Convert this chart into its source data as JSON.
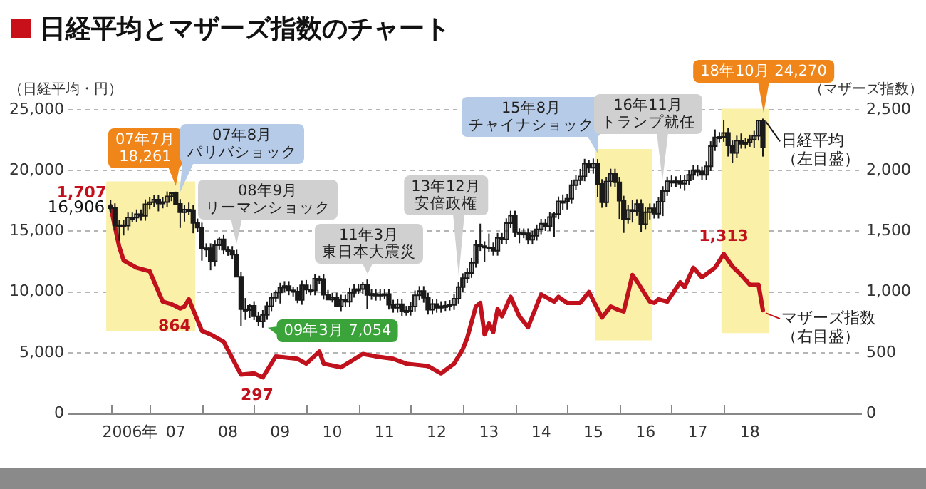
{
  "chart_data": {
    "type": "candlestick",
    "title": "日経平均とマザーズ指数のチャート",
    "ylabel": "（日経平均・円）",
    "y2label": "（マザーズ指数）",
    "xlim": [
      "2005-06-10",
      "2020-08-24"
    ],
    "xticks": [
      {
        "value": "2006-04",
        "label": null
      },
      {
        "value": "2006-08-15",
        "label": "2006年"
      },
      {
        "value": "2007-01",
        "label": null
      },
      {
        "value": "2007-07",
        "label": "07"
      },
      {
        "value": "2008-01",
        "label": null
      },
      {
        "value": "2008-07",
        "label": "08"
      },
      {
        "value": "2009-01",
        "label": null
      },
      {
        "value": "2009-07",
        "label": "09"
      },
      {
        "value": "2010-01",
        "label": null
      },
      {
        "value": "2010-07",
        "label": "10"
      },
      {
        "value": "2011-01",
        "label": null
      },
      {
        "value": "2011-07",
        "label": "11"
      },
      {
        "value": "2012-01",
        "label": null
      },
      {
        "value": "2012-07",
        "label": "12"
      },
      {
        "value": "2013-01",
        "label": null
      },
      {
        "value": "2013-07",
        "label": "13"
      },
      {
        "value": "2014-01",
        "label": null
      },
      {
        "value": "2014-07",
        "label": "14"
      },
      {
        "value": "2015-01",
        "label": null
      },
      {
        "value": "2015-07",
        "label": "15"
      },
      {
        "value": "2016-01",
        "label": null
      },
      {
        "value": "2016-07",
        "label": "16"
      },
      {
        "value": "2017-01",
        "label": null
      },
      {
        "value": "2017-07",
        "label": "17"
      },
      {
        "value": "2018-01",
        "label": null
      },
      {
        "value": "2018-07",
        "label": "18"
      }
    ],
    "ylim": [
      0,
      25000
    ],
    "yticks": [
      0,
      {
        "value": 5000,
        "label": "5,000"
      },
      {
        "value": 10000,
        "label": "10,000"
      },
      {
        "value": 15000,
        "label": "15,000"
      },
      {
        "value": 20000,
        "label": "20,000"
      },
      {
        "value": 25000,
        "label": "25,000"
      }
    ],
    "y2lim": [
      0,
      2500
    ],
    "y2ticks": [
      0,
      500,
      {
        "value": 1000,
        "label": "1,000"
      },
      {
        "value": 1500,
        "label": "1,500"
      },
      {
        "value": 2000,
        "label": "2,000"
      },
      {
        "value": 2500,
        "label": "2,500"
      }
    ],
    "grid": "y",
    "legend": "right",
    "bands": [
      {
        "axis": "x",
        "from": "2006-03-01",
        "to": "2007-11-15",
        "color": "#faf0a8"
      },
      {
        "axis": "x",
        "from": "2015-07-15",
        "to": "2016-08-15",
        "color": "#faf0a8"
      },
      {
        "axis": "x",
        "from": "2017-12-15",
        "to": "2018-11-15",
        "color": "#faf0a8"
      }
    ],
    "annotations": [
      {
        "text": "07年7月\n18,261",
        "x": "2007-07",
        "y": 18261
      },
      {
        "text": "07年8月パリバショック",
        "x": "2007-08",
        "y": 17648
      },
      {
        "text": "08年9月リーマンショック",
        "x": "2008-09",
        "y": 13472
      },
      {
        "text": "11年3月東日本大震災",
        "x": "2011-03",
        "y": 11024
      },
      {
        "text": "13年12月安倍政権",
        "x": "2012-12",
        "y": 10795
      },
      {
        "text": "15年8月チャイナショック",
        "x": "2015-08",
        "y": 20946
      },
      {
        "text": "16年11月トランプ就任",
        "x": "2016-11",
        "y": 18708
      },
      {
        "text": "18年10月 24,270",
        "x": "2018-10",
        "y": 24270
      },
      {
        "text": "09年3月 7,054",
        "x": "2009-03",
        "y": 7054
      },
      {
        "text": "16,906",
        "x": "2006-04",
        "y": 16906
      }
    ],
    "series": [
      {
        "name": "日経平均（左目盛）",
        "color": "#1a1a1a",
        "x": [
          "2006-04",
          "2006-05",
          "2006-06",
          "2006-07",
          "2006-08",
          "2006-09",
          "2006-10",
          "2006-11",
          "2006-12",
          "2007-01",
          "2007-02",
          "2007-03",
          "2007-04",
          "2007-05",
          "2007-06",
          "2007-07",
          "2007-08",
          "2007-09",
          "2007-10",
          "2007-11",
          "2007-12",
          "2008-01",
          "2008-02",
          "2008-03",
          "2008-04",
          "2008-05",
          "2008-06",
          "2008-07",
          "2008-08",
          "2008-09",
          "2008-10",
          "2008-11",
          "2008-12",
          "2009-01",
          "2009-02",
          "2009-03",
          "2009-04",
          "2009-05",
          "2009-06",
          "2009-07",
          "2009-08",
          "2009-09",
          "2009-10",
          "2009-11",
          "2009-12",
          "2010-01",
          "2010-02",
          "2010-03",
          "2010-04",
          "2010-05",
          "2010-06",
          "2010-07",
          "2010-08",
          "2010-09",
          "2010-10",
          "2010-11",
          "2010-12",
          "2011-01",
          "2011-02",
          "2011-03",
          "2011-04",
          "2011-05",
          "2011-06",
          "2011-07",
          "2011-08",
          "2011-09",
          "2011-10",
          "2011-11",
          "2011-12",
          "2012-01",
          "2012-02",
          "2012-03",
          "2012-04",
          "2012-05",
          "2012-06",
          "2012-07",
          "2012-08",
          "2012-09",
          "2012-10",
          "2012-11",
          "2012-12",
          "2013-01",
          "2013-02",
          "2013-03",
          "2013-04",
          "2013-05",
          "2013-06",
          "2013-07",
          "2013-08",
          "2013-09",
          "2013-10",
          "2013-11",
          "2013-12",
          "2014-01",
          "2014-02",
          "2014-03",
          "2014-04",
          "2014-05",
          "2014-06",
          "2014-07",
          "2014-08",
          "2014-09",
          "2014-10",
          "2014-11",
          "2014-12",
          "2015-01",
          "2015-02",
          "2015-03",
          "2015-04",
          "2015-05",
          "2015-06",
          "2015-07",
          "2015-08",
          "2015-09",
          "2015-10",
          "2015-11",
          "2015-12",
          "2016-01",
          "2016-02",
          "2016-03",
          "2016-04",
          "2016-05",
          "2016-06",
          "2016-07",
          "2016-08",
          "2016-09",
          "2016-10",
          "2016-11",
          "2016-12",
          "2017-01",
          "2017-02",
          "2017-03",
          "2017-04",
          "2017-05",
          "2017-06",
          "2017-07",
          "2017-08",
          "2017-09",
          "2017-10",
          "2017-11",
          "2017-12",
          "2018-01",
          "2018-02",
          "2018-03",
          "2018-04",
          "2018-05",
          "2018-06",
          "2018-07",
          "2018-08",
          "2018-09",
          "2018-10"
        ],
        "ohlc": [
          [
            17060,
            17560,
            16500,
            16906
          ],
          [
            16906,
            17300,
            15067,
            15467
          ],
          [
            15467,
            15905,
            14219,
            15505
          ],
          [
            15505,
            15905,
            14657,
            15457
          ],
          [
            15457,
            16540,
            15057,
            16140
          ],
          [
            16140,
            16540,
            15727,
            16127
          ],
          [
            16127,
            16799,
            15727,
            16399
          ],
          [
            16399,
            16799,
            15874,
            16274
          ],
          [
            16274,
            17625,
            15874,
            17225
          ],
          [
            17225,
            17783,
            16825,
            17383
          ],
          [
            17383,
            18004,
            16983,
            17604
          ],
          [
            17604,
            18004,
            16642,
            17288
          ],
          [
            17288,
            17800,
            16888,
            17400
          ],
          [
            17400,
            18275,
            17000,
            17875
          ],
          [
            17875,
            18240,
            17475,
            18138
          ],
          [
            18138,
            18261,
            17248,
            17248
          ],
          [
            17248,
            17648,
            15273,
            16569
          ],
          [
            16569,
            17185,
            15801,
            16785
          ],
          [
            16785,
            17358,
            16337,
            16737
          ],
          [
            16737,
            17137,
            14838,
            15680
          ],
          [
            15680,
            16044,
            14907,
            15307
          ],
          [
            15307,
            15707,
            12573,
            13592
          ],
          [
            13592,
            14003,
            12900,
            13603
          ],
          [
            13603,
            14003,
            11787,
            12525
          ],
          [
            12525,
            14249,
            12125,
            13849
          ],
          [
            13849,
            14489,
            13449,
            14338
          ],
          [
            14338,
            14738,
            13081,
            13481
          ],
          [
            13481,
            13776,
            12976,
            13376
          ],
          [
            13376,
            13776,
            12672,
            13072
          ],
          [
            13072,
            13472,
            11259,
            11259
          ],
          [
            11259,
            11659,
            7162,
            8576
          ],
          [
            8576,
            9500,
            7703,
            8512
          ],
          [
            8512,
            9000,
            7863,
            8859
          ],
          [
            8859,
            9239,
            7682,
            7994
          ],
          [
            7994,
            8394,
            7168,
            7568
          ],
          [
            7568,
            8509,
            7054,
            8109
          ],
          [
            8109,
            9228,
            7709,
            8828
          ],
          [
            8828,
            9922,
            8428,
            9522
          ],
          [
            9522,
            10135,
            9152,
            9958
          ],
          [
            9958,
            10756,
            9050,
            10356
          ],
          [
            10356,
            10892,
            9956,
            10492
          ],
          [
            10492,
            10892,
            9733,
            10133
          ],
          [
            10133,
            10434,
            9634,
            10034
          ],
          [
            10034,
            10434,
            9081,
            9345
          ],
          [
            9345,
            10946,
            8945,
            10546
          ],
          [
            10546,
            10982,
            9798,
            10198
          ],
          [
            10198,
            10598,
            9726,
            10126
          ],
          [
            10126,
            11489,
            9726,
            11089
          ],
          [
            11089,
            11339,
            10657,
            11057
          ],
          [
            11057,
            11457,
            9368,
            9768
          ],
          [
            9768,
            10168,
            9382,
            9382
          ],
          [
            9382,
            9937,
            9137,
            9537
          ],
          [
            9537,
            9937,
            8824,
            8824
          ],
          [
            8824,
            9769,
            8424,
            9369
          ],
          [
            9369,
            9769,
            8802,
            9202
          ],
          [
            9202,
            10337,
            8802,
            9937
          ],
          [
            9937,
            10628,
            9537,
            10228
          ],
          [
            10228,
            10637,
            9837,
            10237
          ],
          [
            10237,
            10857,
            9837,
            10624
          ],
          [
            10624,
            11024,
            8605,
            9755
          ],
          [
            9755,
            10249,
            9355,
            9849
          ],
          [
            9849,
            10249,
            9293,
            9693
          ],
          [
            9693,
            10216,
            9293,
            9816
          ],
          [
            9816,
            10233,
            9433,
            9833
          ],
          [
            9833,
            10233,
            8555,
            8955
          ],
          [
            8955,
            9355,
            8300,
            8700
          ],
          [
            8700,
            9388,
            8300,
            8988
          ],
          [
            8988,
            9388,
            8034,
            8434
          ],
          [
            8434,
            8855,
            8055,
            8455
          ],
          [
            8455,
            9202,
            8055,
            8802
          ],
          [
            8802,
            10123,
            8402,
            9723
          ],
          [
            9723,
            10483,
            9323,
            10083
          ],
          [
            10083,
            10483,
            9120,
            9520
          ],
          [
            9520,
            9920,
            8142,
            8542
          ],
          [
            8542,
            9406,
            8142,
            9006
          ],
          [
            9006,
            9406,
            8295,
            8695
          ],
          [
            8695,
            9239,
            8295,
            8839
          ],
          [
            8839,
            9270,
            8439,
            8870
          ],
          [
            8870,
            9328,
            8470,
            8928
          ],
          [
            8928,
            9846,
            8528,
            9446
          ],
          [
            9446,
            10795,
            9046,
            10395
          ],
          [
            10395,
            11538,
            9995,
            11138
          ],
          [
            11138,
            11959,
            10738,
            11559
          ],
          [
            11559,
            12797,
            11159,
            12397
          ],
          [
            12397,
            14260,
            11997,
            13860
          ],
          [
            13860,
            15627,
            13374,
            13774
          ],
          [
            13774,
            14174,
            12445,
            13677
          ],
          [
            13677,
            14809,
            13277,
            13668
          ],
          [
            13668,
            14068,
            12988,
            13388
          ],
          [
            13388,
            14855,
            12988,
            14455
          ],
          [
            14455,
            14855,
            13927,
            14327
          ],
          [
            14327,
            16062,
            13927,
            15662
          ],
          [
            15662,
            16691,
            15262,
            16291
          ],
          [
            16291,
            16691,
            14514,
            14914
          ],
          [
            14914,
            15241,
            14008,
            14841
          ],
          [
            14841,
            15228,
            14428,
            14828
          ],
          [
            14828,
            15228,
            13904,
            14304
          ],
          [
            14304,
            15032,
            13904,
            14632
          ],
          [
            14632,
            15562,
            14232,
            15162
          ],
          [
            15162,
            16021,
            14762,
            15621
          ],
          [
            15621,
            16021,
            15025,
            15425
          ],
          [
            15425,
            16574,
            15025,
            16174
          ],
          [
            16174,
            16574,
            14529,
            16413
          ],
          [
            16413,
            17860,
            16013,
            17460
          ],
          [
            17460,
            18030,
            16755,
            17451
          ],
          [
            17451,
            18074,
            16795,
            17674
          ],
          [
            17674,
            19198,
            17274,
            18798
          ],
          [
            18798,
            19607,
            18398,
            19207
          ],
          [
            19207,
            20134,
            18807,
            19520
          ],
          [
            19520,
            20963,
            19120,
            20563
          ],
          [
            20563,
            20868,
            19836,
            20236
          ],
          [
            20236,
            20985,
            19737,
            20585
          ],
          [
            20585,
            20946,
            17806,
            18890
          ],
          [
            18890,
            19290,
            16930,
            17388
          ],
          [
            17388,
            19483,
            16988,
            19083
          ],
          [
            19083,
            20147,
            18683,
            19747
          ],
          [
            19747,
            20147,
            18634,
            19034
          ],
          [
            19034,
            19434,
            16017,
            17518
          ],
          [
            17518,
            17918,
            14865,
            16027
          ],
          [
            16027,
            17159,
            15627,
            16759
          ],
          [
            16759,
            17573,
            15715,
            16666
          ],
          [
            16666,
            17635,
            16266,
            17235
          ],
          [
            17235,
            17635,
            14952,
            15576
          ],
          [
            15576,
            16969,
            15176,
            16569
          ],
          [
            16569,
            17287,
            15976,
            16887
          ],
          [
            16887,
            17287,
            16050,
            16450
          ],
          [
            16450,
            17825,
            16050,
            17425
          ],
          [
            17425,
            18708,
            16251,
            18308
          ],
          [
            18308,
            19494,
            17908,
            19114
          ],
          [
            19114,
            19594,
            18641,
            19041
          ],
          [
            19041,
            19519,
            18641,
            19119
          ],
          [
            19119,
            19633,
            18509,
            18909
          ],
          [
            18909,
            19597,
            18335,
            19197
          ],
          [
            19197,
            20051,
            18797,
            19651
          ],
          [
            19651,
            20433,
            19251,
            20033
          ],
          [
            20033,
            20433,
            19525,
            19925
          ],
          [
            19925,
            20325,
            19246,
            19646
          ],
          [
            19646,
            20756,
            19246,
            20356
          ],
          [
            20356,
            22412,
            19956,
            22012
          ],
          [
            22012,
            23382,
            21612,
            22725
          ],
          [
            22725,
            23165,
            22325,
            22765
          ],
          [
            22765,
            24124,
            22365,
            23098
          ],
          [
            23098,
            23498,
            21154,
            22068
          ],
          [
            22068,
            22468,
            20617,
            21454
          ],
          [
            21454,
            22868,
            21054,
            22468
          ],
          [
            22468,
            23050,
            21802,
            22202
          ],
          [
            22202,
            22705,
            21802,
            22305
          ],
          [
            22305,
            22954,
            21954,
            22554
          ],
          [
            22554,
            23265,
            21857,
            22865
          ],
          [
            22865,
            24120,
            22465,
            24120
          ],
          [
            24120,
            24270,
            21149,
            21920
          ]
        ]
      },
      {
        "name": "マザーズ指数（右目盛）",
        "type": "line",
        "axis": "y2",
        "color": "#c0111c",
        "x": [
          "2006-04",
          "2006-06",
          "2006-07",
          "2006-10",
          "2007-01",
          "2007-04",
          "2007-06",
          "2007-08",
          "2007-09",
          "2007-10",
          "2008-01",
          "2008-03",
          "2008-06",
          "2008-10",
          "2009-01",
          "2009-03",
          "2009-06",
          "2009-11",
          "2010-01",
          "2010-04",
          "2010-05",
          "2010-09",
          "2011-02",
          "2011-05",
          "2011-09",
          "2011-12",
          "2012-05",
          "2012-08",
          "2012-11",
          "2013-01",
          "2013-02",
          "2013-04",
          "2013-05",
          "2013-06",
          "2013-07",
          "2013-08",
          "2013-09",
          "2013-10",
          "2013-12",
          "2014-02",
          "2014-04",
          "2014-07",
          "2014-10",
          "2014-11",
          "2015-01",
          "2015-04",
          "2015-06",
          "2015-09",
          "2015-11",
          "2016-01",
          "2016-02",
          "2016-04",
          "2016-05",
          "2016-08",
          "2016-09",
          "2016-10",
          "2016-12",
          "2017-03",
          "2017-04",
          "2017-06",
          "2017-08",
          "2017-11",
          "2018-01",
          "2018-03",
          "2018-05",
          "2018-07",
          "2018-09",
          "2018-10"
        ],
        "values": [
          1707,
          1370,
          1260,
          1200,
          1170,
          920,
          900,
          864,
          880,
          940,
          680,
          650,
          590,
          320,
          330,
          297,
          470,
          450,
          410,
          510,
          410,
          380,
          490,
          470,
          450,
          410,
          390,
          330,
          410,
          530,
          620,
          880,
          910,
          650,
          740,
          670,
          860,
          800,
          960,
          800,
          710,
          980,
          920,
          960,
          910,
          910,
          1000,
          790,
          880,
          850,
          840,
          1140,
          1090,
          920,
          910,
          940,
          920,
          1080,
          1040,
          1200,
          1120,
          1200,
          1313,
          1210,
          1140,
          1060,
          1060,
          850
        ],
        "value_labels": [
          "1,707",
          null,
          null,
          null,
          null,
          null,
          null,
          "864",
          null,
          null,
          null,
          null,
          null,
          null,
          null,
          "297",
          null,
          null,
          null,
          null,
          null,
          null,
          null,
          null,
          null,
          null,
          null,
          null,
          null,
          null,
          null,
          null,
          null,
          null,
          null,
          null,
          null,
          null,
          null,
          null,
          null,
          null,
          null,
          null,
          null,
          null,
          null,
          null,
          null,
          null,
          null,
          null,
          null,
          null,
          null,
          null,
          null,
          null,
          null,
          null,
          null,
          null,
          "1,313",
          null,
          null,
          null,
          null,
          null
        ]
      }
    ]
  }
}
